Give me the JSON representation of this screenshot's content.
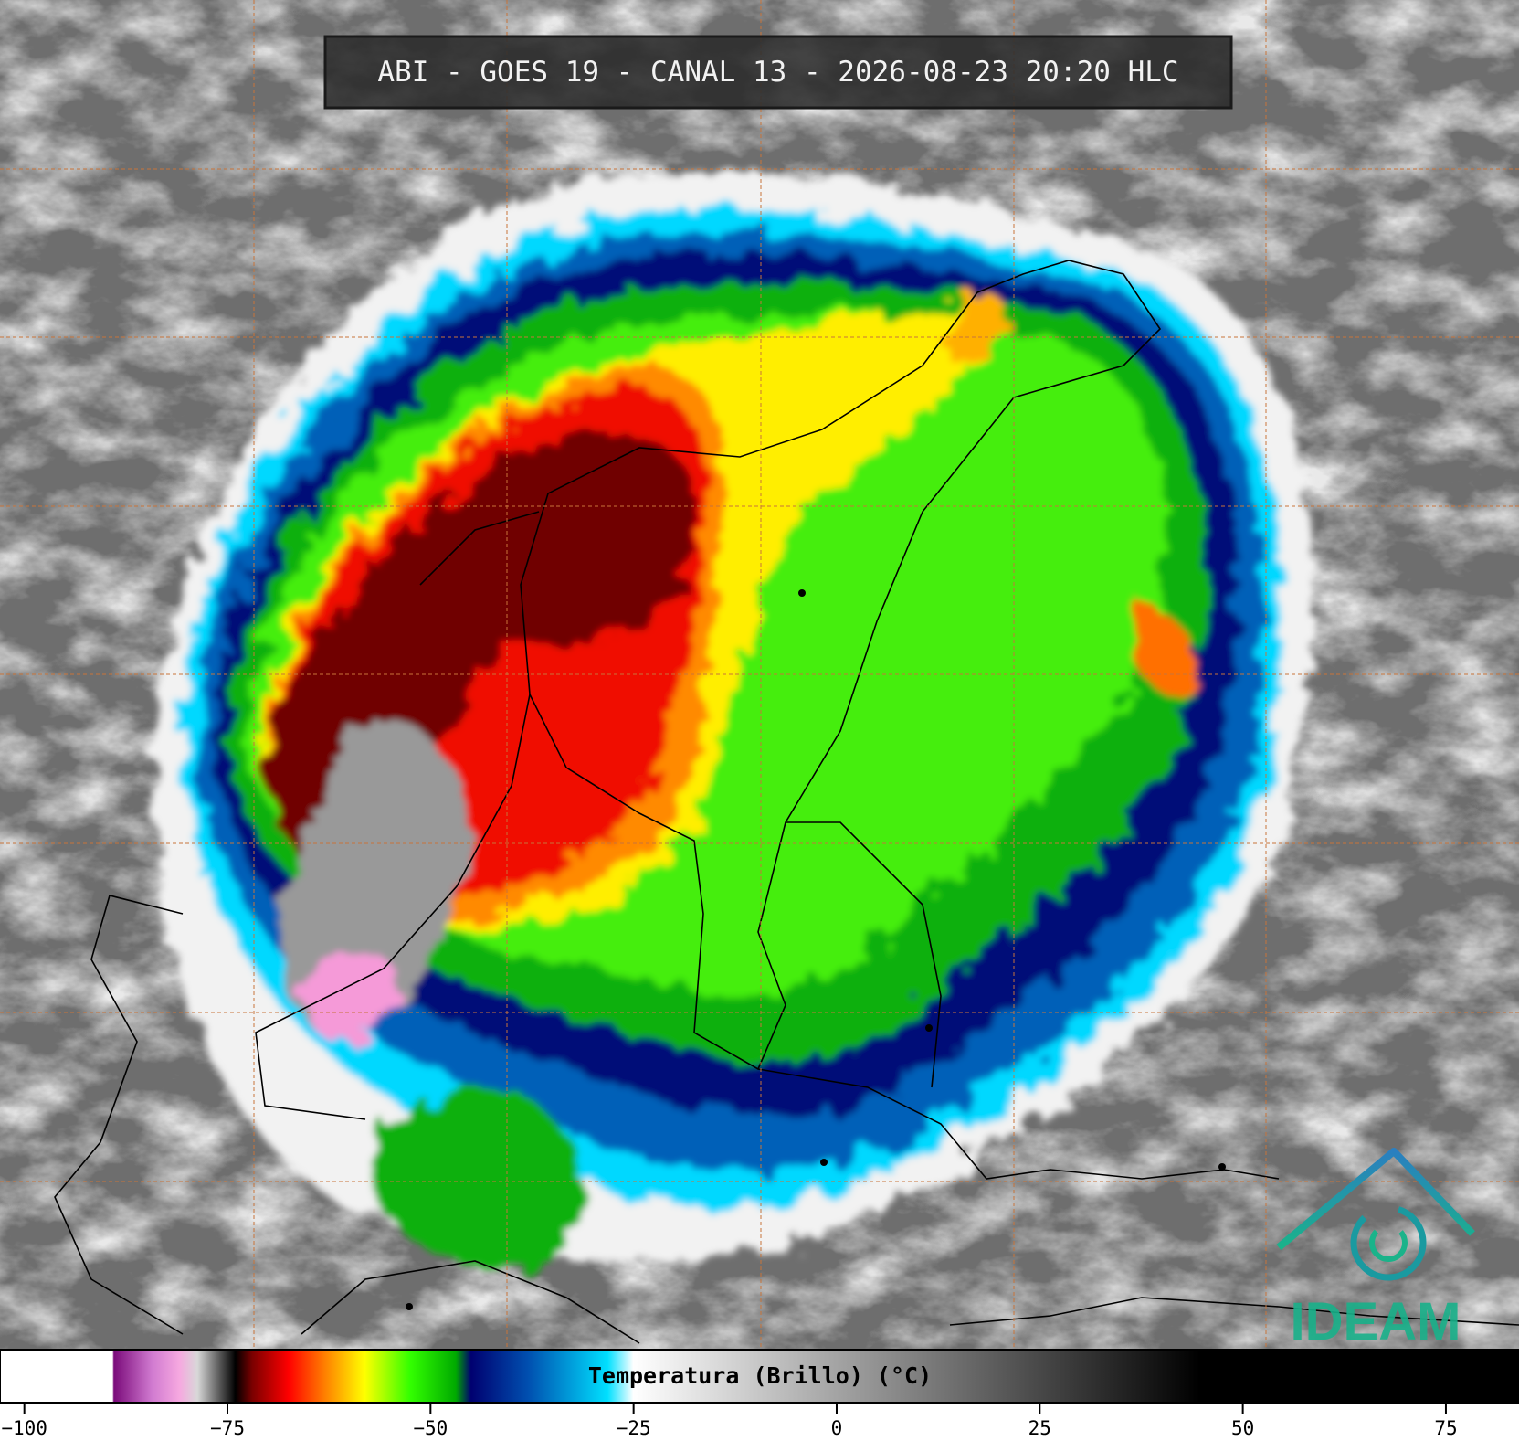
{
  "header": {
    "title": "ABI - GOES 19 - CANAL 13 - 2026-08-23 20:20 HLC"
  },
  "colorbar": {
    "label": "Temperatura (Brillo) (°C)",
    "lim": [
      -103,
      84
    ],
    "ticks": [
      {
        "value": -100,
        "label": "−100"
      },
      {
        "value": -75,
        "label": "−75"
      },
      {
        "value": -50,
        "label": "−50"
      },
      {
        "value": -25,
        "label": "−25"
      },
      0,
      25,
      50,
      75
    ]
  },
  "logo": {
    "text": "IDEAM"
  }
}
